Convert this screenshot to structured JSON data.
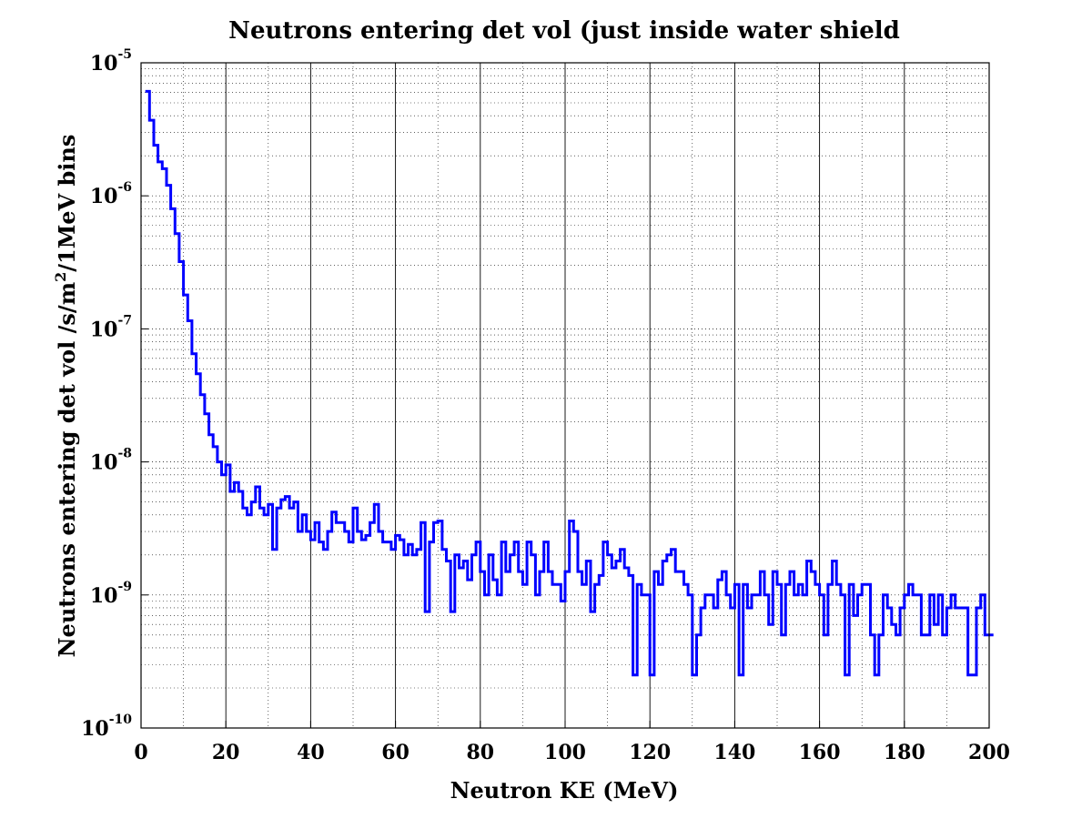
{
  "chart_data": {
    "type": "line",
    "step": true,
    "title": "Neutrons entering det vol (just inside water shield",
    "xlabel": "Neutron KE (MeV)",
    "ylabel": {
      "prefix": "Neutrons entering det vol /s/m",
      "superscript": "2",
      "suffix": "/1MeV bins"
    },
    "xlim": [
      0,
      200
    ],
    "ylim": [
      1e-10,
      1e-05
    ],
    "yscale": "log",
    "xticks": [
      0,
      20,
      40,
      60,
      80,
      100,
      120,
      140,
      160,
      180,
      200
    ],
    "xtick_labels": [
      "0",
      "20",
      "40",
      "60",
      "80",
      "100",
      "120",
      "140",
      "160",
      "180",
      "200"
    ],
    "yticks": [
      {
        "value": 1e-10,
        "base": "10",
        "exp": "-10"
      },
      {
        "value": 1e-09,
        "base": "10",
        "exp": "-9"
      },
      {
        "value": 1e-08,
        "base": "10",
        "exp": "-8"
      },
      {
        "value": 1e-07,
        "base": "10",
        "exp": "-7"
      },
      {
        "value": 1e-06,
        "base": "10",
        "exp": "-6"
      },
      {
        "value": 1e-05,
        "base": "10",
        "exp": "-5"
      }
    ],
    "grid": true,
    "line_color": "#0000ff",
    "bin_width": 1,
    "bin_start": 1,
    "values": [
      6.1e-06,
      3.7e-06,
      2.4e-06,
      1.8e-06,
      1.6e-06,
      1.2e-06,
      8e-07,
      5.2e-07,
      3.2e-07,
      1.8e-07,
      1.15e-07,
      6.5e-08,
      4.6e-08,
      3.2e-08,
      2.3e-08,
      1.6e-08,
      1.3e-08,
      1e-08,
      8e-09,
      9.5e-09,
      6e-09,
      7e-09,
      6e-09,
      4.5e-09,
      4e-09,
      5e-09,
      6.5e-09,
      4.5e-09,
      4e-09,
      4.8e-09,
      2.2e-09,
      4.5e-09,
      5.2e-09,
      5.5e-09,
      4.5e-09,
      5e-09,
      3e-09,
      4e-09,
      3e-09,
      2.6e-09,
      3.5e-09,
      2.5e-09,
      2.2e-09,
      3e-09,
      4.2e-09,
      3.5e-09,
      3.5e-09,
      3e-09,
      2.5e-09,
      4.5e-09,
      3e-09,
      2.6e-09,
      2.8e-09,
      3.5e-09,
      4.8e-09,
      3e-09,
      2.5e-09,
      2.5e-09,
      2.2e-09,
      2.8e-09,
      2.6e-09,
      2e-09,
      2.4e-09,
      2e-09,
      2.2e-09,
      3.5e-09,
      7.5e-10,
      2.5e-09,
      3.5e-09,
      3.6e-09,
      2.2e-09,
      1.8e-09,
      7.5e-10,
      2e-09,
      1.6e-09,
      1.8e-09,
      1.3e-09,
      2e-09,
      2.5e-09,
      1.5e-09,
      1e-09,
      2e-09,
      1.3e-09,
      1e-09,
      2.5e-09,
      1.5e-09,
      2e-09,
      2.5e-09,
      1.5e-09,
      1.2e-09,
      2.5e-09,
      2e-09,
      1e-09,
      1.5e-09,
      2.5e-09,
      1.5e-09,
      1.2e-09,
      1.2e-09,
      9e-10,
      1.5e-09,
      3.6e-09,
      3e-09,
      1.5e-09,
      1.2e-09,
      1.8e-09,
      7.5e-10,
      1.2e-09,
      1.4e-09,
      2.5e-09,
      2e-09,
      1.6e-09,
      1.8e-09,
      2.2e-09,
      1.6e-09,
      1.4e-09,
      2.5e-10,
      1.2e-09,
      1e-09,
      1e-09,
      2.5e-10,
      1.5e-09,
      1.2e-09,
      1.8e-09,
      2e-09,
      2.2e-09,
      1.5e-09,
      1.5e-09,
      1.2e-09,
      1e-09,
      2.5e-10,
      5e-10,
      8e-10,
      1e-09,
      1e-09,
      8e-10,
      1.3e-09,
      1.5e-09,
      1e-09,
      8e-10,
      1.2e-09,
      2.5e-10,
      1.2e-09,
      8e-10,
      1e-09,
      1e-09,
      1.5e-09,
      1e-09,
      6e-10,
      1.5e-09,
      1.2e-09,
      5e-10,
      1.2e-09,
      1.5e-09,
      1e-09,
      1.2e-09,
      1e-09,
      1.8e-09,
      1.5e-09,
      1.2e-09,
      1e-09,
      5e-10,
      1.2e-09,
      1.8e-09,
      1.2e-09,
      1e-09,
      2.5e-10,
      1.2e-09,
      7e-10,
      1e-09,
      1.2e-09,
      1.2e-09,
      5e-10,
      2.5e-10,
      5e-10,
      1e-09,
      8e-10,
      6e-10,
      5e-10,
      8e-10,
      1e-09,
      1.2e-09,
      1e-09,
      1e-09,
      5e-10,
      5e-10,
      1e-09,
      6e-10,
      1e-09,
      5e-10,
      8e-10,
      1e-09,
      8e-10,
      8e-10,
      8e-10,
      2.5e-10,
      2.5e-10,
      8e-10,
      1e-09,
      5e-10,
      5e-10
    ]
  }
}
